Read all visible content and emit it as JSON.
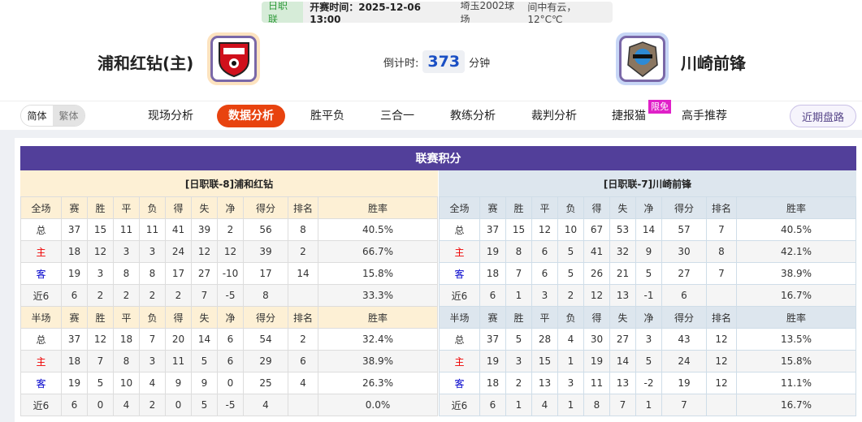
{
  "header": {
    "league": "日职联",
    "kickoff": "开赛时间：2025-12-06 13:00",
    "venue": "埼玉2002球场",
    "weather": "间中有云， 12°C℃"
  },
  "home": {
    "name": "浦和红钻(主)",
    "tag": "[日职联-8]浦和红钻",
    "logo_border": "#fde3bf"
  },
  "away": {
    "name": "川崎前锋",
    "tag": "[日职联-7]川崎前锋",
    "logo_border": "#c7d6f6"
  },
  "countdown": {
    "label": "倒计时:",
    "value": "373",
    "unit": "分钟"
  },
  "lang": {
    "simplified": "简体",
    "traditional": "繁体"
  },
  "nav": {
    "items": [
      "现场分析",
      "数据分析",
      "胜平负",
      "三合一",
      "教练分析",
      "裁判分析",
      "捷报猫",
      "高手推荐"
    ],
    "active": "数据分析",
    "badge": "限免",
    "recent": "近期盘路"
  },
  "section_title": "联赛积分",
  "columns": [
    "赛",
    "胜",
    "平",
    "负",
    "得",
    "失",
    "净",
    "得分",
    "排名",
    "胜率"
  ],
  "tables": {
    "home": [
      {
        "title": "全场",
        "rows": [
          [
            "总",
            "37",
            "15",
            "11",
            "11",
            "41",
            "39",
            "2",
            "56",
            "8",
            "40.5%"
          ],
          [
            "主",
            "18",
            "12",
            "3",
            "3",
            "24",
            "12",
            "12",
            "39",
            "2",
            "66.7%"
          ],
          [
            "客",
            "19",
            "3",
            "8",
            "8",
            "17",
            "27",
            "-10",
            "17",
            "14",
            "15.8%"
          ],
          [
            "近6",
            "6",
            "2",
            "2",
            "2",
            "2",
            "7",
            "-5",
            "8",
            "",
            "33.3%"
          ]
        ]
      },
      {
        "title": "半场",
        "rows": [
          [
            "总",
            "37",
            "12",
            "18",
            "7",
            "20",
            "14",
            "6",
            "54",
            "2",
            "32.4%"
          ],
          [
            "主",
            "18",
            "7",
            "8",
            "3",
            "11",
            "5",
            "6",
            "29",
            "6",
            "38.9%"
          ],
          [
            "客",
            "19",
            "5",
            "10",
            "4",
            "9",
            "9",
            "0",
            "25",
            "4",
            "26.3%"
          ],
          [
            "近6",
            "6",
            "0",
            "4",
            "2",
            "0",
            "5",
            "-5",
            "4",
            "",
            "0.0%"
          ]
        ]
      }
    ],
    "away": [
      {
        "title": "全场",
        "rows": [
          [
            "总",
            "37",
            "15",
            "12",
            "10",
            "67",
            "53",
            "14",
            "57",
            "7",
            "40.5%"
          ],
          [
            "主",
            "19",
            "8",
            "6",
            "5",
            "41",
            "32",
            "9",
            "30",
            "8",
            "42.1%"
          ],
          [
            "客",
            "18",
            "7",
            "6",
            "5",
            "26",
            "21",
            "5",
            "27",
            "7",
            "38.9%"
          ],
          [
            "近6",
            "6",
            "1",
            "3",
            "2",
            "12",
            "13",
            "-1",
            "6",
            "",
            "16.7%"
          ]
        ]
      },
      {
        "title": "半场",
        "rows": [
          [
            "总",
            "37",
            "5",
            "28",
            "4",
            "30",
            "27",
            "3",
            "43",
            "12",
            "13.5%"
          ],
          [
            "主",
            "19",
            "3",
            "15",
            "1",
            "19",
            "14",
            "5",
            "24",
            "12",
            "15.8%"
          ],
          [
            "客",
            "18",
            "2",
            "13",
            "3",
            "11",
            "13",
            "-2",
            "19",
            "12",
            "11.1%"
          ],
          [
            "近6",
            "6",
            "1",
            "4",
            "1",
            "8",
            "7",
            "1",
            "7",
            "",
            "16.7%"
          ]
        ]
      }
    ]
  },
  "colors": {
    "title_bar": "#523f9a",
    "active_nav": "#e8430f",
    "home_label": "#ee0000",
    "away_label": "#0000cc"
  }
}
